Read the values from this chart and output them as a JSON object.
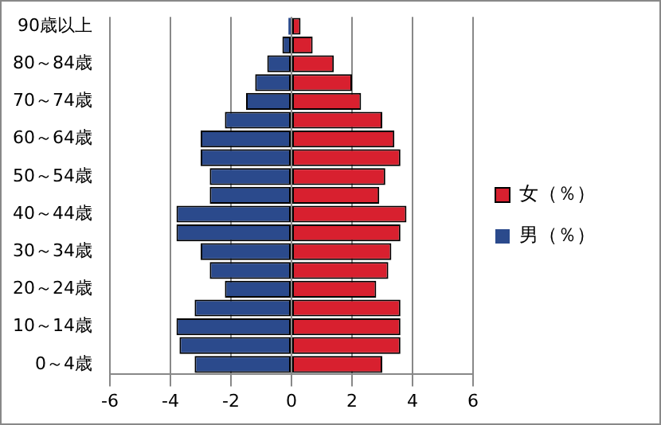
{
  "chart_data": {
    "type": "bar",
    "orientation": "horizontal",
    "stacked": true,
    "categories": [
      "90歳以上",
      null,
      "80～84歳",
      null,
      "70～74歳",
      null,
      "60～64歳",
      null,
      "50～54歳",
      null,
      "40～44歳",
      null,
      "30～34歳",
      null,
      "20～24歳",
      null,
      "10～14歳",
      null,
      "0～4歳"
    ],
    "series": [
      {
        "name": "女（％）",
        "color": "#d8202f",
        "values": [
          0.3,
          0.7,
          1.4,
          2.0,
          2.3,
          3.0,
          3.4,
          3.6,
          3.1,
          2.9,
          3.8,
          3.6,
          3.3,
          3.2,
          2.8,
          3.6,
          3.6,
          3.6,
          3.0
        ]
      },
      {
        "name": "男（％）",
        "color": "#2b4a8c",
        "values": [
          -0.1,
          -0.3,
          -0.8,
          -1.2,
          -1.5,
          -2.2,
          -3.0,
          -3.0,
          -2.7,
          -2.7,
          -3.8,
          -3.8,
          -3.0,
          -2.7,
          -2.2,
          -3.2,
          -3.8,
          -3.7,
          -3.2
        ]
      }
    ],
    "xlim": [
      -6,
      6
    ],
    "xticks": [
      -6,
      -4,
      -2,
      0,
      2,
      4,
      6
    ],
    "grid": "x",
    "legend": "right"
  }
}
